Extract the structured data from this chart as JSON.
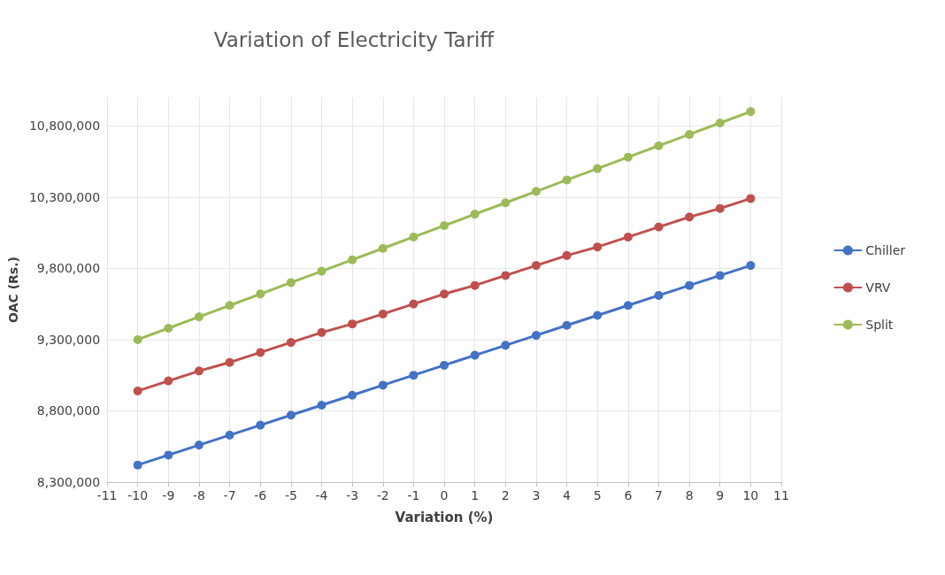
{
  "chart_data": {
    "type": "line",
    "title": "Variation of Electricity Tariff",
    "xlabel": "Variation (%)",
    "ylabel": "OAC (Rs.)",
    "x": [
      -10,
      -9,
      -8,
      -7,
      -6,
      -5,
      -4,
      -3,
      -2,
      -1,
      0,
      1,
      2,
      3,
      4,
      5,
      6,
      7,
      8,
      9,
      10
    ],
    "series": [
      {
        "name": "Chiller",
        "color": "#4472c4",
        "values": [
          8420000,
          8490000,
          8560000,
          8630000,
          8700000,
          8770000,
          8840000,
          8910000,
          8980000,
          9050000,
          9120000,
          9190000,
          9260000,
          9330000,
          9400000,
          9470000,
          9540000,
          9610000,
          9680000,
          9750000,
          9820000
        ]
      },
      {
        "name": "VRV",
        "color": "#c0504d",
        "values": [
          8940000,
          9010000,
          9080000,
          9140000,
          9210000,
          9280000,
          9350000,
          9410000,
          9480000,
          9550000,
          9620000,
          9680000,
          9750000,
          9820000,
          9890000,
          9950000,
          10020000,
          10090000,
          10160000,
          10220000,
          10290000
        ]
      },
      {
        "name": "Split",
        "color": "#9bbb59",
        "values": [
          9300000,
          9380000,
          9460000,
          9540000,
          9620000,
          9700000,
          9780000,
          9860000,
          9940000,
          10020000,
          10100000,
          10180000,
          10260000,
          10340000,
          10420000,
          10500000,
          10580000,
          10660000,
          10740000,
          10820000,
          10900000
        ]
      }
    ],
    "xlim": [
      -11,
      11
    ],
    "xticks": [
      -11,
      -10,
      -9,
      -8,
      -7,
      -6,
      -5,
      -4,
      -3,
      -2,
      -1,
      0,
      1,
      2,
      3,
      4,
      5,
      6,
      7,
      8,
      9,
      10,
      11
    ],
    "ylim": [
      8300000,
      11000000
    ],
    "yticks": [
      {
        "value": 8300000,
        "label": "8,300,000"
      },
      {
        "value": 8800000,
        "label": "8,800,000"
      },
      {
        "value": 9300000,
        "label": "9,300,000"
      },
      {
        "value": 9800000,
        "label": "9,800,000"
      },
      {
        "value": 10300000,
        "label": "10,300,000"
      },
      {
        "value": 10800000,
        "label": "10,800,000"
      }
    ],
    "grid": true,
    "legend": "right",
    "marker": "circle",
    "line_style": "solid"
  }
}
